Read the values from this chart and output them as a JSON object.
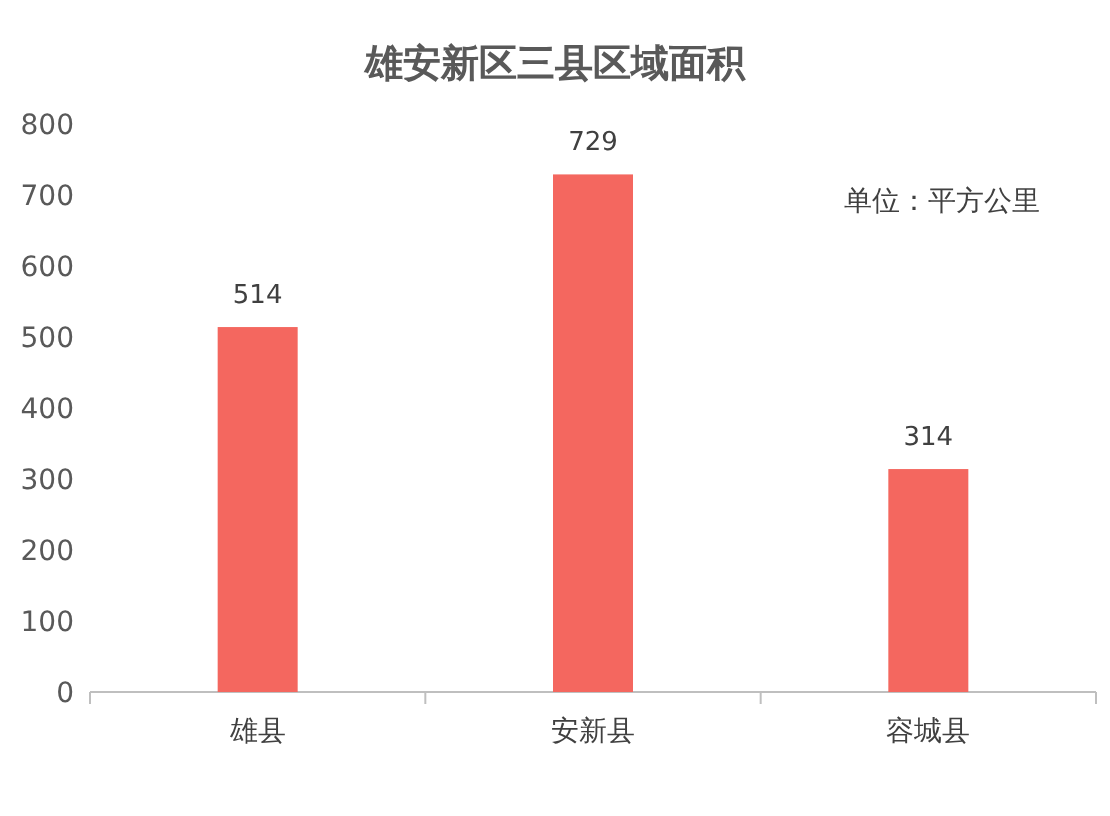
{
  "chart_data": {
    "type": "bar",
    "title": "雄安新区三县区域面积",
    "categories": [
      "雄县",
      "安新县",
      "容城县"
    ],
    "values": [
      514,
      729,
      314
    ],
    "color": "#f4675f",
    "ylim": [
      0,
      800
    ],
    "yticks": [
      0,
      100,
      200,
      300,
      400,
      500,
      600,
      700,
      800
    ],
    "data_labels": true,
    "annotations": [
      "单位：平方公里"
    ]
  }
}
